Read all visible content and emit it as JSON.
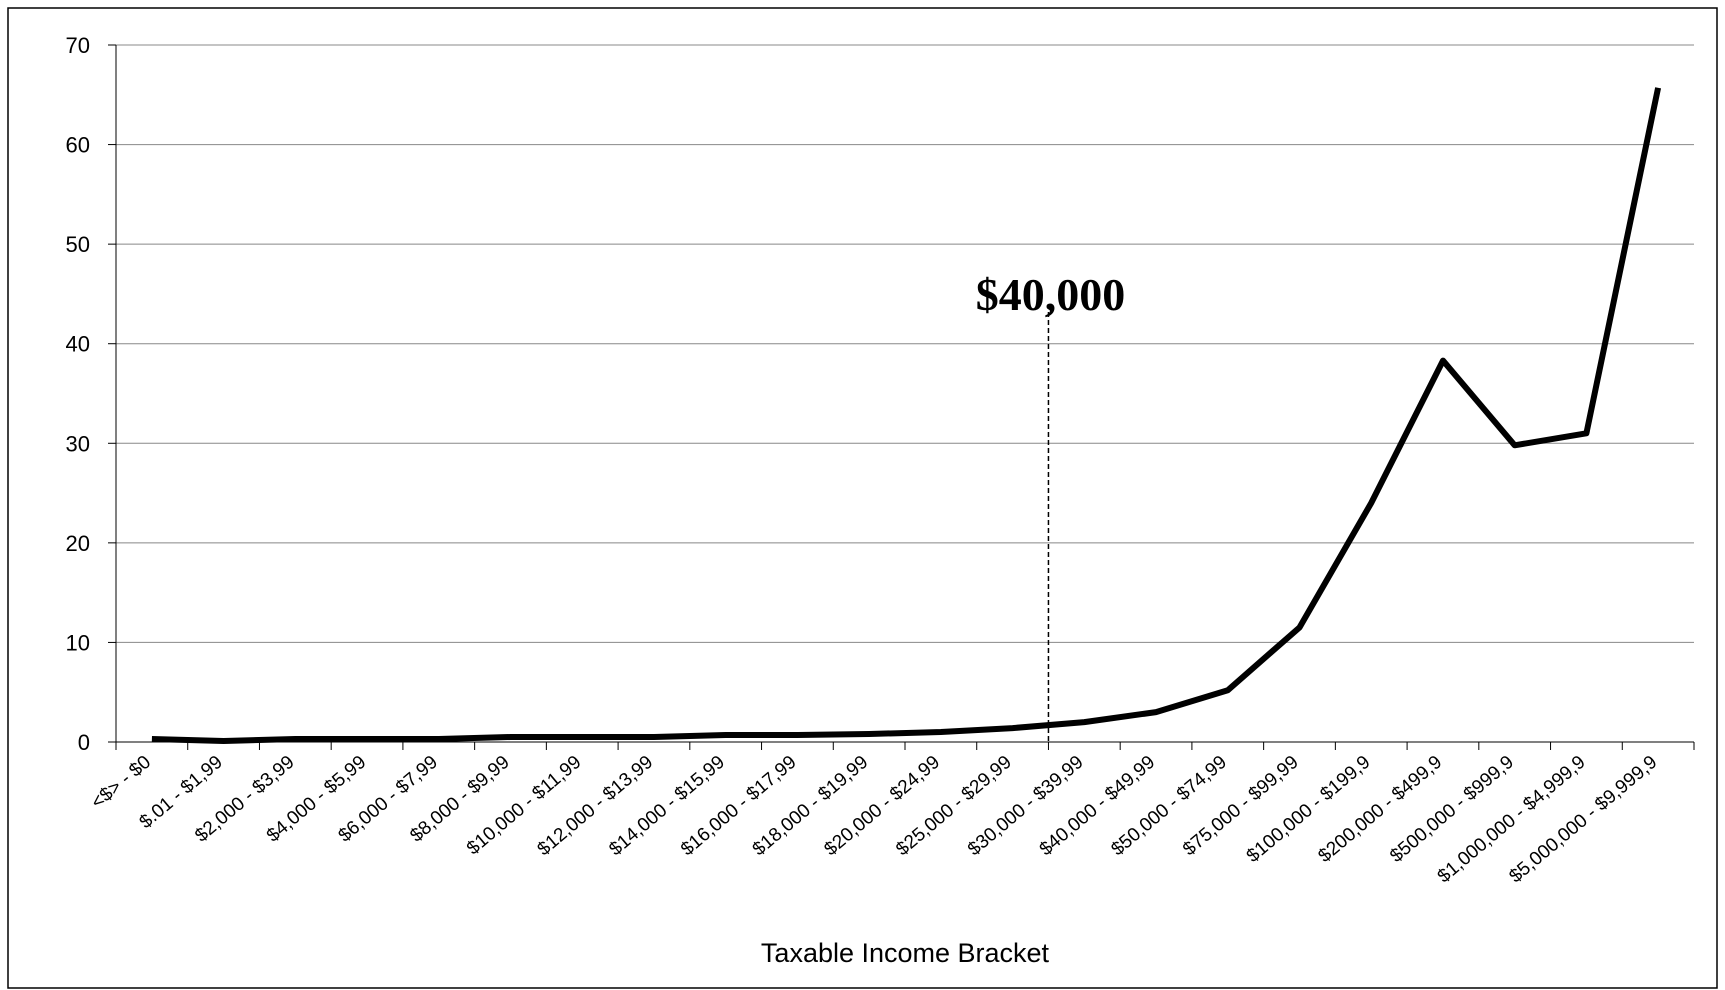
{
  "chart_data": {
    "type": "line",
    "xlabel": "Taxable Income Bracket",
    "annotation": "$40,000",
    "categories": [
      "<$> - $0",
      "$.01 - $1,99",
      "$2,000 - $3,99",
      "$4,000 - $5,99",
      "$6,000 - $7,99",
      "$8,000 - $9,99",
      "$10,000 - $11,99",
      "$12,000 - $13,99",
      "$14,000 - $15,99",
      "$16,000 - $17,99",
      "$18,000 - $19,99",
      "$20,000 - $24,99",
      "$25,000 - $29,99",
      "$30,000 - $39,99",
      "$40,000 - $49,99",
      "$50,000 - $74,99",
      "$75,000 - $99,99",
      "$100,000 - $199,9",
      "$200,000 - $499,9",
      "$500,000 - $999,9",
      "$1,000,000 - $4,999,9",
      "$5,000,000 - $9,999,9"
    ],
    "values": [
      0.3,
      0.1,
      0.3,
      0.3,
      0.3,
      0.5,
      0.5,
      0.5,
      0.7,
      0.7,
      0.8,
      1.0,
      1.4,
      2.0,
      3.0,
      5.2,
      11.5,
      24,
      38.3,
      29.8,
      31,
      65.7
    ],
    "color": "#000000",
    "ylim": [
      0,
      70
    ],
    "yticks": [
      0,
      10,
      20,
      30,
      40,
      50,
      60,
      70
    ],
    "grid": true
  }
}
